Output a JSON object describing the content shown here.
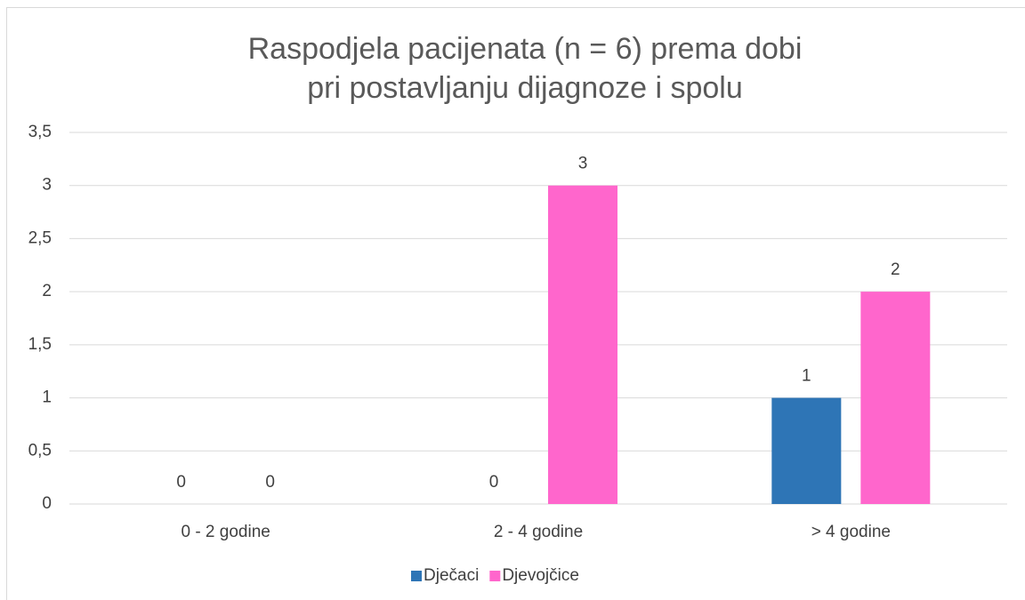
{
  "chart_data": {
    "type": "bar",
    "title": [
      "Raspodjela pacijenata (n = 6) prema dobi",
      "pri postavljanju dijagnoze i spolu"
    ],
    "categories": [
      "0 - 2 godine",
      "2 - 4 godine",
      "> 4 godine"
    ],
    "series": [
      {
        "name": "Dječaci",
        "color": "#2e75b6",
        "values": [
          0,
          0,
          1
        ]
      },
      {
        "name": "Djevojčice",
        "color": "#ff66cc",
        "values": [
          0,
          3,
          2
        ]
      }
    ],
    "ylim": [
      0,
      3.5
    ],
    "yticks": [
      0,
      {
        "value": 0.5,
        "label": "0,5"
      },
      1,
      {
        "value": 1.5,
        "label": "1,5"
      },
      2,
      {
        "value": 2.5,
        "label": "2,5"
      },
      3,
      {
        "value": 3.5,
        "label": "3,5"
      }
    ],
    "grid": true,
    "legend": "bottom"
  }
}
